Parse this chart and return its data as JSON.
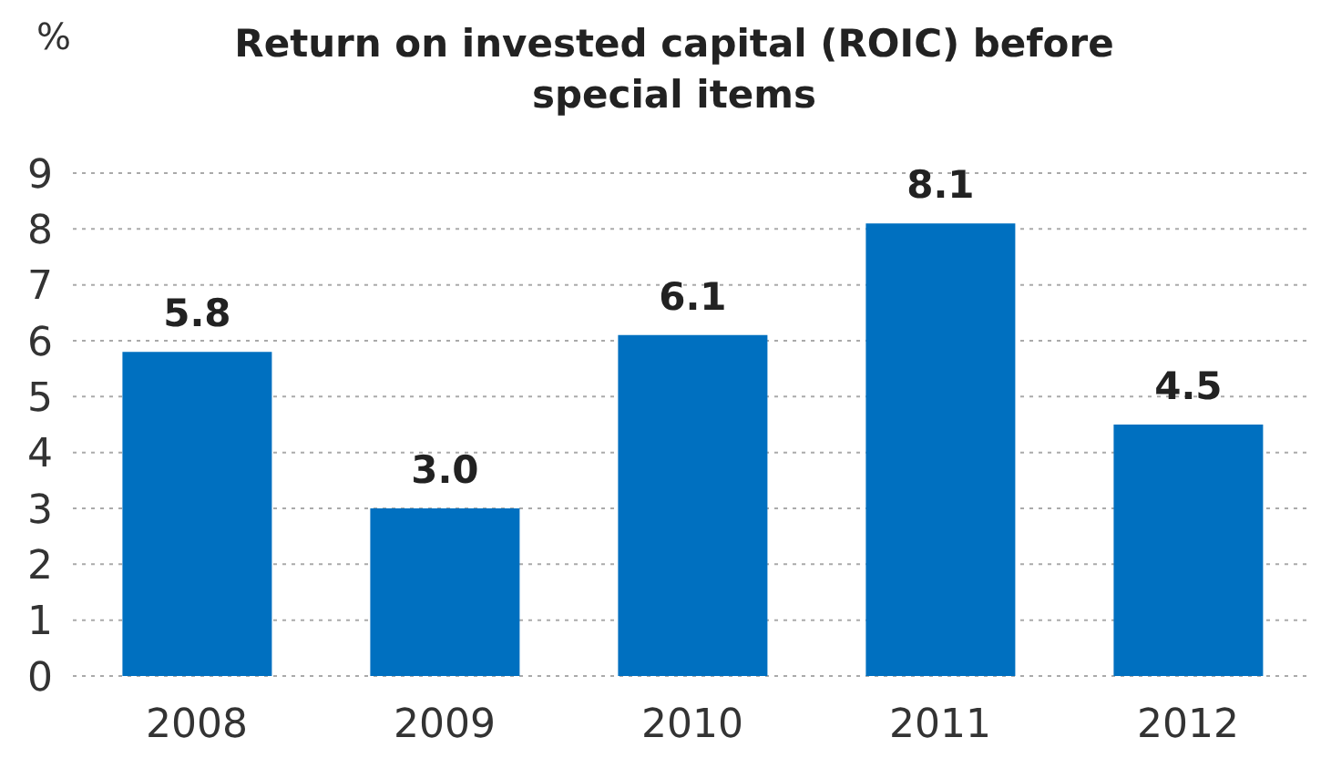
{
  "chart_data": {
    "type": "bar",
    "title": "Return on invested capital (ROIC) before special items",
    "ylabel": "%",
    "categories": [
      "2008",
      "2009",
      "2010",
      "2011",
      "2012"
    ],
    "values": [
      5.8,
      3.0,
      6.1,
      8.1,
      4.5
    ],
    "value_labels": [
      "5.8",
      "3.0",
      "6.1",
      "8.1",
      "4.5"
    ],
    "color": "#0070c0",
    "ylim": [
      0,
      9
    ],
    "yticks": [
      0,
      1,
      2,
      3,
      4,
      5,
      6,
      7,
      8,
      9
    ],
    "grid": "y",
    "legend": false
  }
}
